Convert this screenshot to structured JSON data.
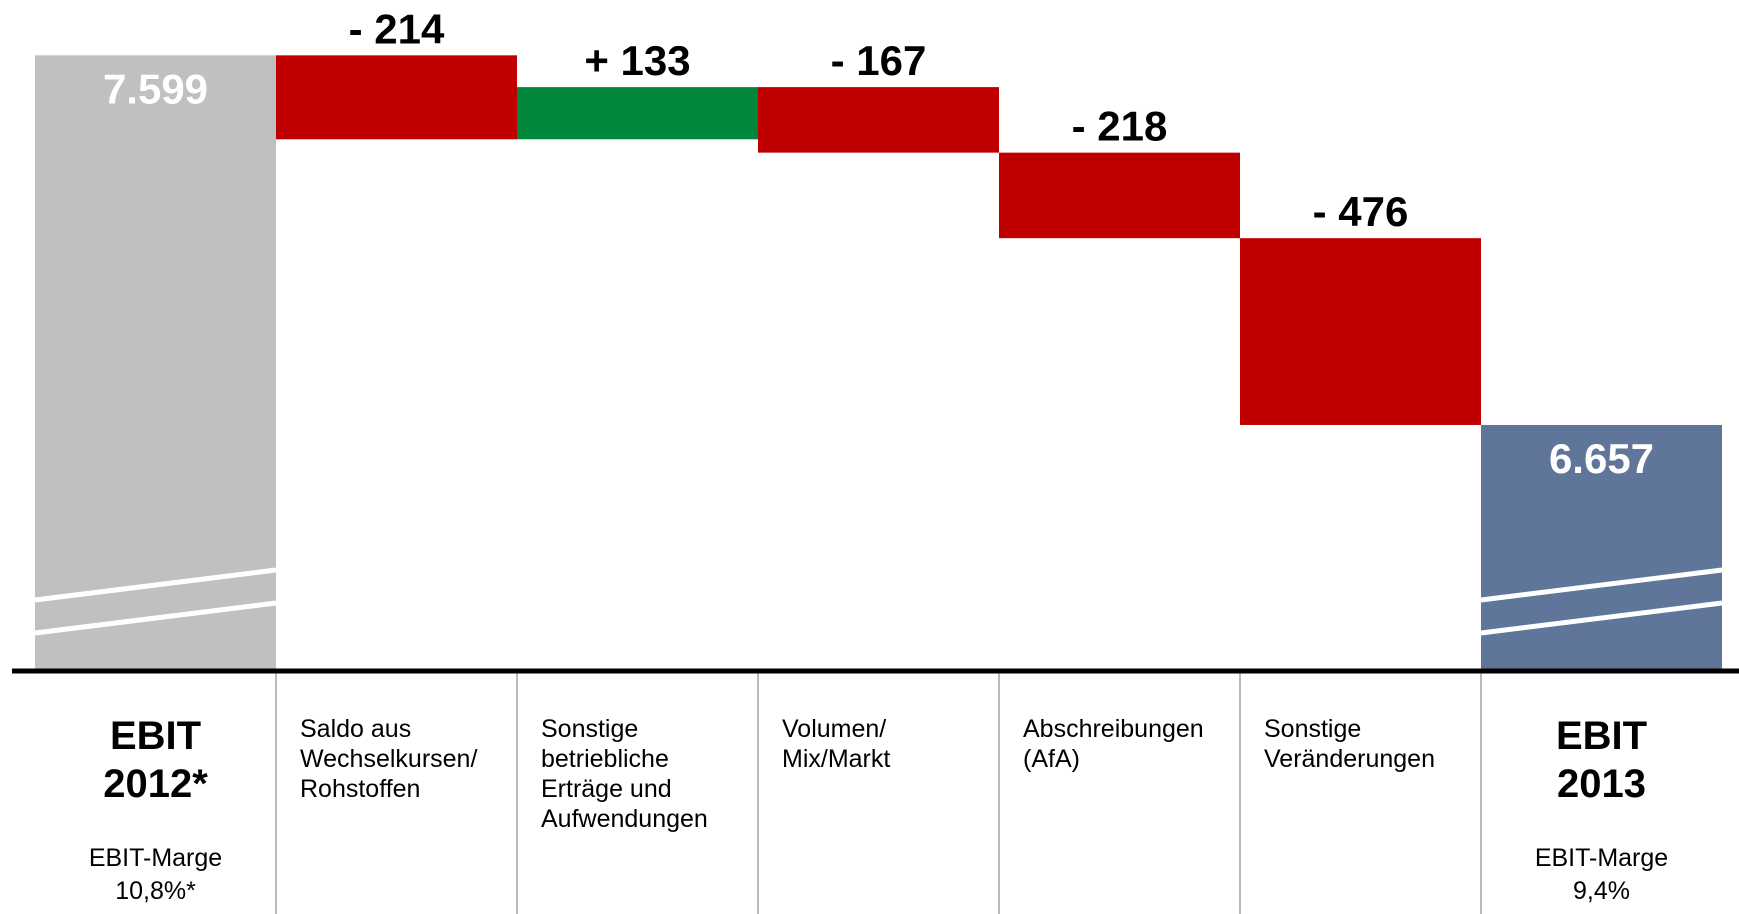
{
  "chart_data": {
    "type": "waterfall",
    "categories": [
      "EBIT\n2012*",
      "Saldo aus\nWechselkursen/\nRohstoffen",
      "Sonstige\nbetriebliche\nErträge und\nAufwendungen",
      "Volumen/\nMix/Markt",
      "Abschreibungen\n(AfA)",
      "Sonstige\nVeränderungen",
      "EBIT\n2013"
    ],
    "category_notes": [
      "EBIT-Marge\n10,8%*",
      null,
      null,
      null,
      null,
      null,
      "EBIT-Marge\n9,4%"
    ],
    "measures": [
      "total",
      "relative",
      "relative",
      "relative",
      "relative",
      "relative",
      "total"
    ],
    "values": [
      7599,
      -214,
      133,
      -167,
      -218,
      -476,
      6657
    ],
    "value_labels": [
      "7.599",
      "- 214",
      "+ 133",
      "- 167",
      "- 218",
      "- 476",
      "6.657"
    ],
    "colors": {
      "start": "#c0c0c0",
      "end": "#5f7599",
      "increase": "#00873c",
      "decrease": "#c00000"
    },
    "ylim": [
      6030,
      7740
    ],
    "axis_break": true
  }
}
